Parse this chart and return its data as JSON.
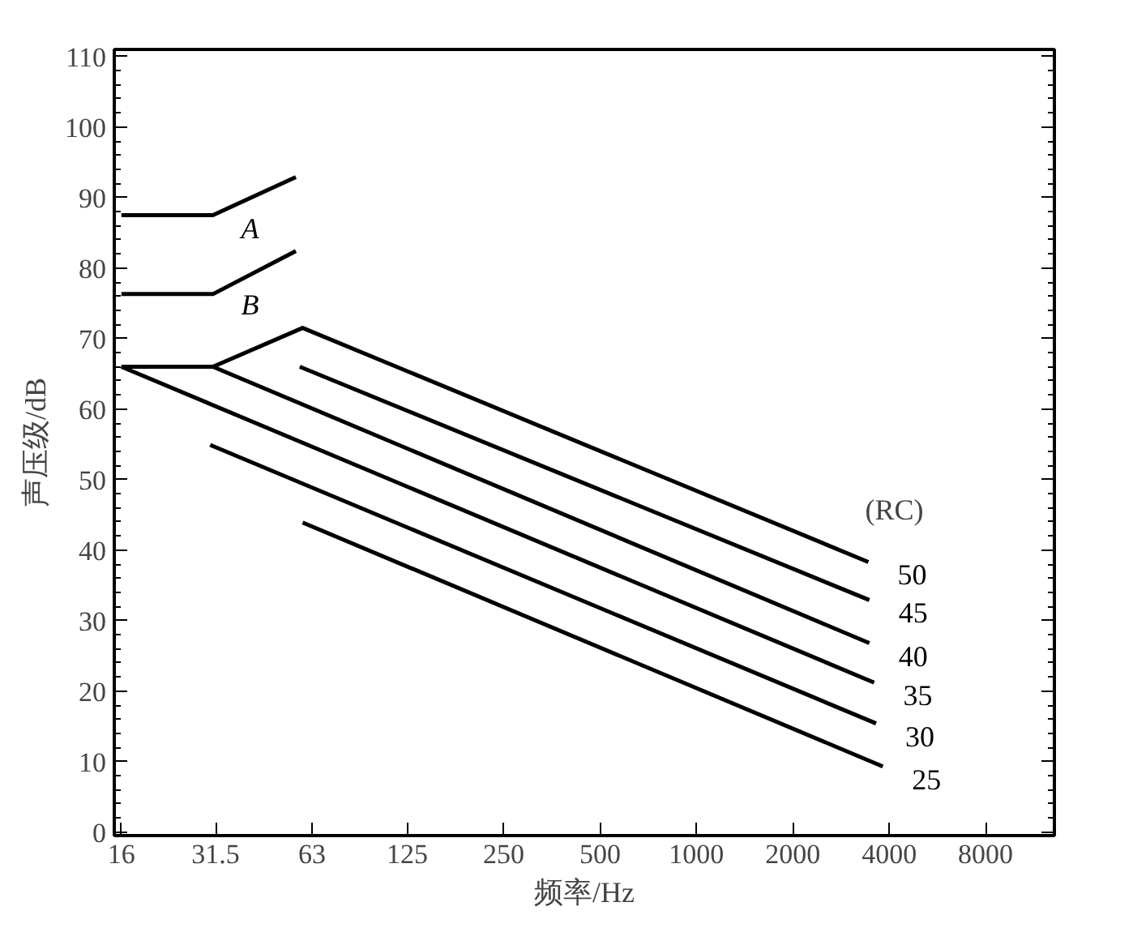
{
  "chart_data": {
    "type": "line",
    "xlabel": "频率/Hz",
    "ylabel": "声压级/dB",
    "legend_title": "(RC)",
    "log": "x",
    "xlim": [
      15.2,
      13120
    ],
    "ylim": [
      -0.5,
      111
    ],
    "xticks": [
      16,
      31.5,
      63,
      125,
      250,
      500,
      1000,
      2000,
      4000,
      8000
    ],
    "yticks": [
      0,
      10,
      20,
      30,
      40,
      50,
      60,
      70,
      80,
      90,
      100,
      110
    ],
    "grid": false,
    "marker": "none",
    "line_style": "solid",
    "series": [
      {
        "name": "A",
        "color": "#000000",
        "x": [
          16,
          30.9,
          56.1
        ],
        "values": [
          87.5,
          87.5,
          92.9
        ]
      },
      {
        "name": "B",
        "color": "#000000",
        "x": [
          16,
          30.9,
          56.1
        ],
        "values": [
          76.3,
          76.3,
          82.4
        ]
      },
      {
        "name": "50",
        "color": "#000000",
        "x": [
          16,
          30.9,
          58.9,
          3444
        ],
        "values": [
          66,
          66,
          71.5,
          38.3
        ]
      },
      {
        "name": "45",
        "color": "#000000",
        "x": [
          57.7,
          3468
        ],
        "values": [
          66,
          32.9
        ]
      },
      {
        "name": "40",
        "color": "#000000",
        "x": [
          30.9,
          3468
        ],
        "values": [
          66,
          26.8
        ]
      },
      {
        "name": "35",
        "color": "#000000",
        "x": [
          16,
          3589
        ],
        "values": [
          66,
          21.2
        ]
      },
      {
        "name": "30",
        "color": "#000000",
        "x": [
          30.3,
          3640
        ],
        "values": [
          54.9,
          15.4
        ]
      },
      {
        "name": "25",
        "color": "#000000",
        "x": [
          58.9,
          3821
        ],
        "values": [
          43.9,
          9.3
        ]
      }
    ]
  }
}
